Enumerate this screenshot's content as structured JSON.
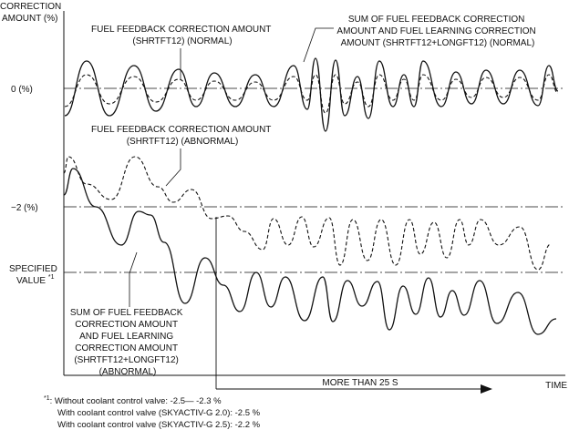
{
  "y_axis_label_lines": [
    "CORRECTION",
    "AMOUNT (%)"
  ],
  "x_axis_label": "TIME",
  "ticks": {
    "zero": "0 (%)",
    "minus_two": "−2 (%)",
    "specified_lines": [
      "SPECIFIED",
      "VALUE"
    ],
    "specified_superscript": "*1"
  },
  "labels": {
    "shrtft_normal": [
      "FUEL FEEDBACK CORRECTION AMOUNT",
      "(SHRTFT12) (NORMAL)"
    ],
    "sum_normal": [
      "SUM OF FUEL FEEDBACK CORRECTION",
      "AMOUNT AND FUEL LEARNING CORRECTION",
      "AMOUNT (SHRTFT12+LONGFT12) (NORMAL)"
    ],
    "shrtft_abnormal": [
      "FUEL FEEDBACK CORRECTION AMOUNT",
      "(SHRTFT12) (ABNORMAL)"
    ],
    "sum_abnormal": [
      "SUM OF FUEL FEEDBACK",
      "CORRECTION AMOUNT",
      "AND FUEL LEARNING",
      "CORRECTION AMOUNT",
      "(SHRTFT12+LONGFT12)",
      "(ABNORMAL)"
    ],
    "more_than": "MORE THAN 25 S"
  },
  "footnote": {
    "marker": "*1",
    "first_line": ": Without coolant control valve: -2.5— -2.3 %",
    "lines": [
      "With coolant control valve (SKYACTIV-G 2.0): -2.5 %",
      "With coolant control valve (SKYACTIV-G 2.5): -2.2 %"
    ]
  },
  "colors": {
    "line": "#111111"
  }
}
